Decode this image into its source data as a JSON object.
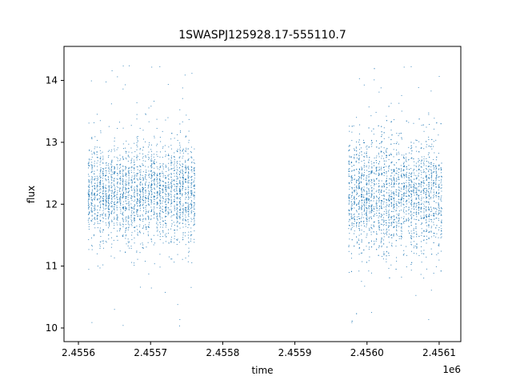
{
  "chart_data": {
    "type": "scatter",
    "title": "1SWASPJ125928.17-555110.7",
    "xlabel": "time",
    "ylabel": "flux",
    "x_offset_label": "1e6",
    "xlim": [
      2.45558,
      2.45613
    ],
    "ylim": [
      9.78,
      14.55
    ],
    "x_ticks": [
      2.4556,
      2.4557,
      2.4558,
      2.4559,
      2.456,
      2.4561
    ],
    "x_tick_labels": [
      "2.4556",
      "2.4557",
      "2.4558",
      "2.4559",
      "2.4560",
      "2.4561"
    ],
    "y_ticks": [
      10,
      11,
      12,
      13,
      14
    ],
    "y_tick_labels": [
      "10",
      "11",
      "12",
      "13",
      "14"
    ],
    "grid": false,
    "point_color": "#1f77b4",
    "series": [
      {
        "segments": [
          {
            "x_start": 2.455613,
            "x_end": 2.455763,
            "center": 12.2,
            "spread": 0.38
          },
          {
            "x_start": 2.455974,
            "x_end": 2.456105,
            "center": 12.15,
            "spread": 0.45
          }
        ]
      }
    ]
  }
}
